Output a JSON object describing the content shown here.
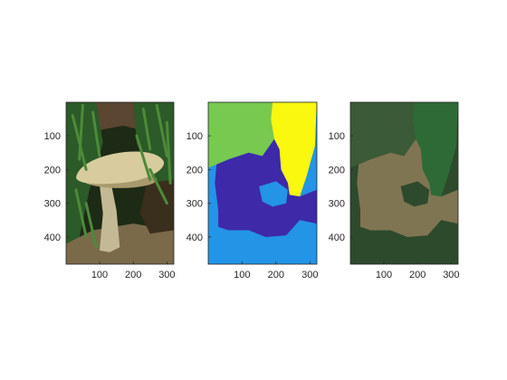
{
  "chart_data": [
    {
      "type": "image",
      "subject": "photograph",
      "xlim": [
        0.5,
        320.5
      ],
      "ylim": [
        0.5,
        480.5
      ],
      "y_direction": "reverse",
      "xticks": [
        100,
        200,
        300
      ],
      "yticks": [
        100,
        200,
        300,
        400
      ],
      "xtick_labels": [
        "100",
        "200",
        "300"
      ],
      "ytick_labels": [
        "100",
        "200",
        "300",
        "400"
      ],
      "title": "",
      "xlabel": "",
      "ylabel": "",
      "colors": {
        "background": "#1d2a15",
        "moss": "#2c5a28",
        "moss_light": "#4d8a3a",
        "cap": "#d8cc9e",
        "cap_shadow": "#a89a6c",
        "stem": "#c4b995",
        "litter": "#7a6a4a",
        "soil": "#3a2e1c",
        "upper_brown": "#5b4632"
      }
    },
    {
      "type": "heatmap",
      "subject": "segmentation label map (4 clusters)",
      "xlim": [
        0.5,
        320.5
      ],
      "ylim": [
        0.5,
        480.5
      ],
      "y_direction": "reverse",
      "xticks": [
        100,
        200,
        300
      ],
      "yticks": [
        100,
        200,
        300,
        400
      ],
      "xtick_labels": [
        "100",
        "200",
        "300"
      ],
      "ytick_labels": [
        "100",
        "200",
        "300",
        "400"
      ],
      "title": "",
      "xlabel": "",
      "ylabel": "",
      "colors": {
        "cluster_green": "#77c950",
        "cluster_yellow": "#f9f80e",
        "cluster_darkblue": "#3e29a9",
        "cluster_lightblue": "#2394e6"
      }
    },
    {
      "type": "heatmap",
      "subject": "segmentation rendered with mean cluster colors",
      "xlim": [
        0.5,
        320.5
      ],
      "ylim": [
        0.5,
        480.5
      ],
      "y_direction": "reverse",
      "xticks": [
        100,
        200,
        300
      ],
      "yticks": [
        100,
        200,
        300,
        400
      ],
      "xtick_labels": [
        "100",
        "200",
        "300"
      ],
      "ytick_labels": [
        "100",
        "200",
        "300",
        "400"
      ],
      "title": "",
      "xlabel": "",
      "ylabel": "",
      "colors": {
        "cluster_green": "#3b5a37",
        "cluster_yellow": "#2e6a36",
        "cluster_darkblue": "#7f7552",
        "cluster_lightblue": "#2e4a2d"
      }
    }
  ]
}
